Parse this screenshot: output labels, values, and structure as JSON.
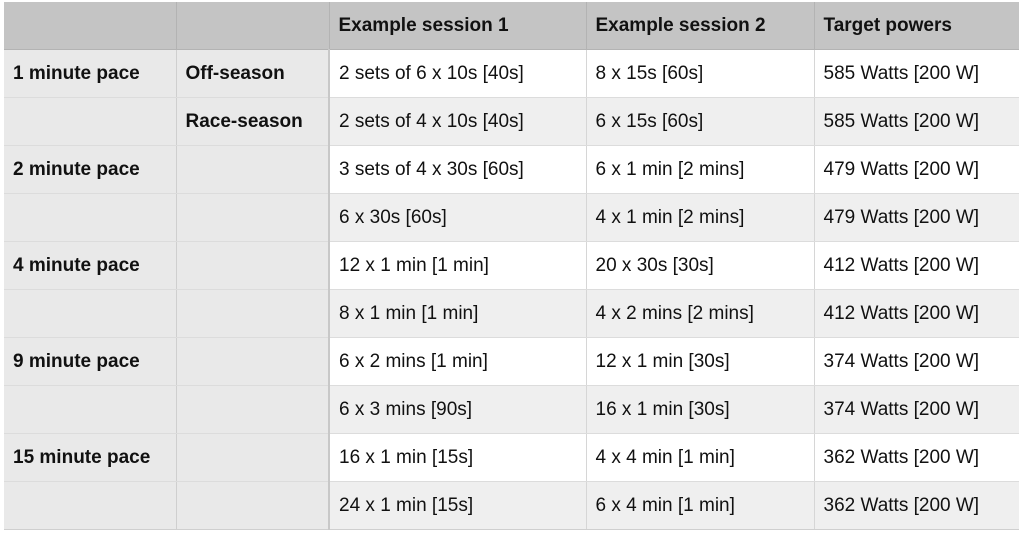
{
  "header": {
    "col1": "",
    "col2": "",
    "col3": "Example session 1",
    "col4": "Example session 2",
    "col5": "Target powers"
  },
  "rows": [
    {
      "pace": "1 minute pace",
      "season": "Off-season",
      "session1": "2 sets of 6 x 10s [40s]",
      "session2": "8 x 15s [60s]",
      "target": "585 Watts [200 W]"
    },
    {
      "pace": "",
      "season": "Race-season",
      "session1": "2 sets of 4 x 10s [40s]",
      "session2": "6 x 15s [60s]",
      "target": "585 Watts [200 W]"
    },
    {
      "pace": "2 minute pace",
      "season": "",
      "session1": "3 sets of 4 x 30s [60s]",
      "session2": "6 x 1 min [2 mins]",
      "target": "479 Watts [200 W]"
    },
    {
      "pace": "",
      "season": "",
      "session1": "6 x 30s [60s]",
      "session2": "4 x 1 min [2 mins]",
      "target": "479 Watts [200 W]"
    },
    {
      "pace": "4 minute pace",
      "season": "",
      "session1": "12 x 1 min [1 min]",
      "session2": "20 x 30s [30s]",
      "target": "412 Watts [200 W]"
    },
    {
      "pace": "",
      "season": "",
      "session1": "8 x 1 min [1 min]",
      "session2": "4 x 2 mins [2 mins]",
      "target": "412 Watts [200 W]"
    },
    {
      "pace": "9 minute pace",
      "season": "",
      "session1": "6 x 2 mins [1 min]",
      "session2": "12 x 1 min [30s]",
      "target": "374 Watts [200 W]"
    },
    {
      "pace": "",
      "season": "",
      "session1": "6 x 3 mins [90s]",
      "session2": "16 x 1 min [30s]",
      "target": "374 Watts [200 W]"
    },
    {
      "pace": "15 minute pace",
      "season": "",
      "session1": "16 x 1 min [15s]",
      "session2": "4 x 4 min [1 min]",
      "target": "362 Watts [200 W]"
    },
    {
      "pace": "",
      "season": "",
      "session1": "24 x 1 min [15s]",
      "session2": "6 x 4 min [1 min]",
      "target": "362 Watts [200 W]"
    }
  ]
}
